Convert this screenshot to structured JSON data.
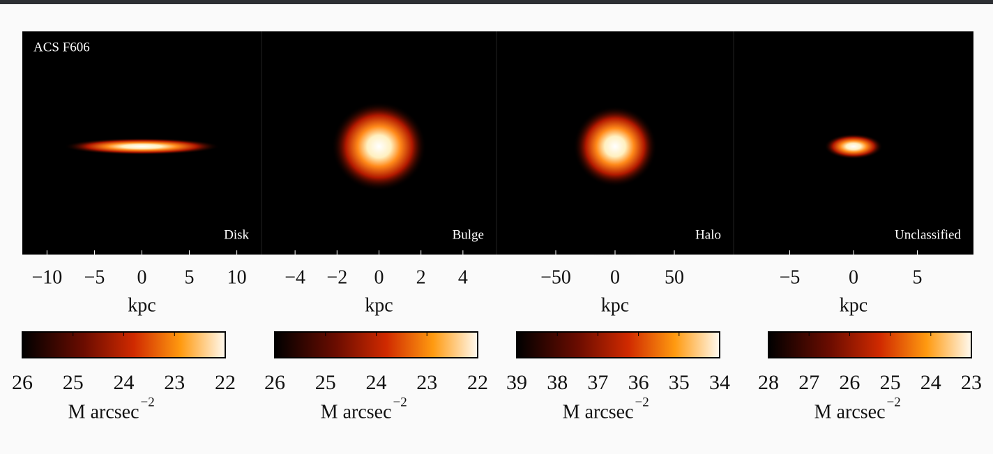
{
  "chart_data": [
    {
      "type": "image",
      "annotation": "ACS F606",
      "label": "Disk",
      "xlabel": "kpc",
      "xlim": [
        -12.6,
        12.6
      ],
      "xticks": [
        {
          "value": -10,
          "label": "−10"
        },
        {
          "value": -5,
          "label": "−5"
        },
        0,
        5,
        10
      ],
      "colorbar": {
        "lim": [
          26,
          22
        ],
        "ticks": [
          26,
          25,
          24,
          23,
          22
        ],
        "label": "M arcsec",
        "label_exponent": "−2"
      }
    },
    {
      "type": "image",
      "label": "Bulge",
      "xlabel": "kpc",
      "xlim": [
        -5.6,
        5.6
      ],
      "xticks": [
        {
          "value": -4,
          "label": "−4"
        },
        {
          "value": -2,
          "label": "−2"
        },
        0,
        2,
        4
      ],
      "colorbar": {
        "lim": [
          26,
          22
        ],
        "ticks": [
          26,
          25,
          24,
          23,
          22
        ],
        "label": "M arcsec",
        "label_exponent": "−2"
      }
    },
    {
      "type": "image",
      "label": "Halo",
      "xlabel": "kpc",
      "xlim": [
        -100,
        100
      ],
      "xticks": [
        {
          "value": -50,
          "label": "−50"
        },
        0,
        50
      ],
      "colorbar": {
        "lim": [
          39,
          34
        ],
        "ticks": [
          39,
          38,
          37,
          36,
          35,
          34
        ],
        "label": "M arcsec",
        "label_exponent": "−2"
      }
    },
    {
      "type": "image",
      "label": "Unclassified",
      "xlabel": "kpc",
      "xlim": [
        -9.4,
        9.4
      ],
      "xticks": [
        {
          "value": -5,
          "label": "−5"
        },
        0,
        5
      ],
      "colorbar": {
        "lim": [
          28,
          23
        ],
        "ticks": [
          28,
          27,
          26,
          25,
          24,
          23
        ],
        "label": "M arcsec",
        "label_exponent": "−2"
      }
    }
  ]
}
